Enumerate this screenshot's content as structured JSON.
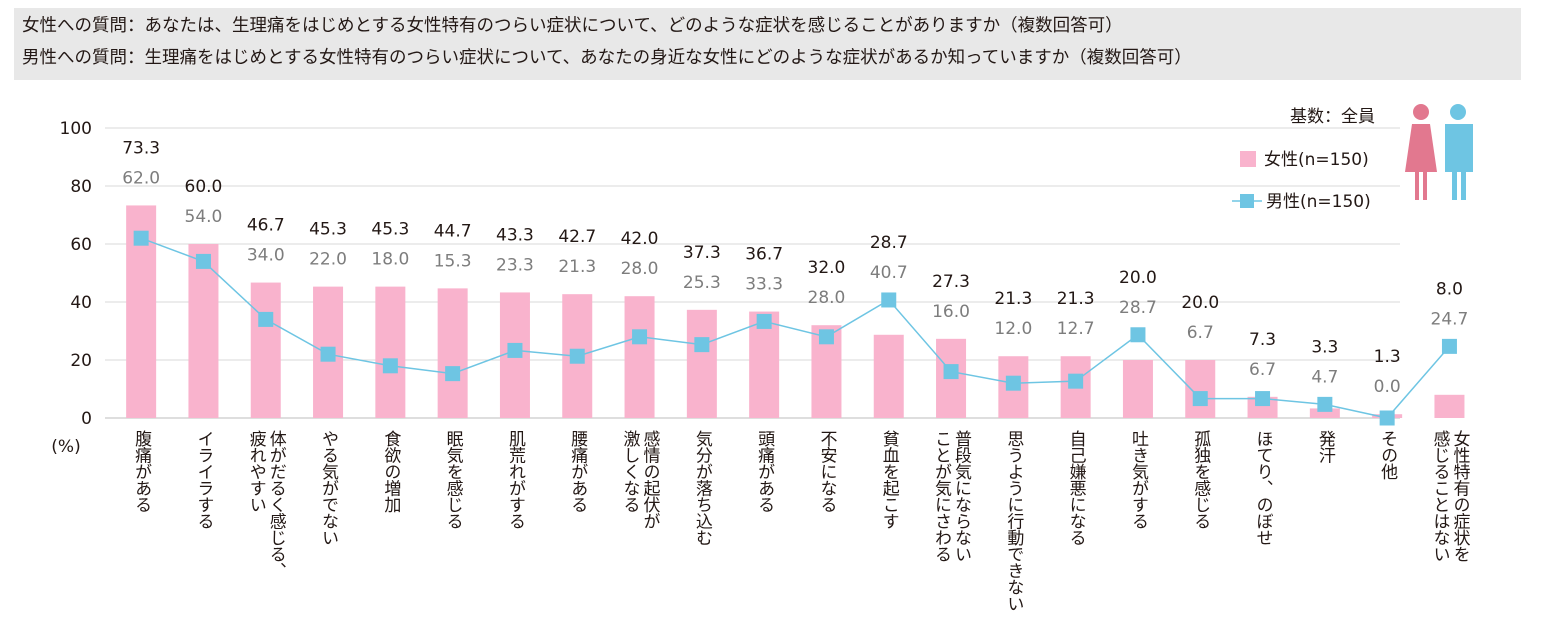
{
  "header": {
    "q_female": "女性への質問：あなたは、生理痛をはじめとする女性特有のつらい症状について、どのような症状を感じることがありますか（複数回答可）",
    "q_male": "男性への質問：生理痛をはじめとする女性特有のつらい症状について、あなたの身近な女性にどのような症状があるか知っていますか（複数回答可）"
  },
  "colors": {
    "female": "#f9b3cd",
    "male": "#6ec5e3",
    "female_icon": "#e2788f",
    "male_icon": "#6ec5e3"
  },
  "chart_data": {
    "type": "bar",
    "base_note": "基数：全員",
    "ylabel": "(%)",
    "ylim": [
      0,
      100
    ],
    "yticks": [
      0,
      20,
      40,
      60,
      80,
      100
    ],
    "categories": [
      [
        "腹痛がある"
      ],
      [
        "イライラする"
      ],
      [
        "体がだるく感じる、",
        "疲れやすい"
      ],
      [
        "やる気がでない"
      ],
      [
        "食欲の増加"
      ],
      [
        "眠気を感じる"
      ],
      [
        "肌荒れがする"
      ],
      [
        "腰痛がある"
      ],
      [
        "感情の起伏が",
        "激しくなる"
      ],
      [
        "気分が落ち込む"
      ],
      [
        "頭痛がある"
      ],
      [
        "不安になる"
      ],
      [
        "貧血を起こす"
      ],
      [
        "普段気にならない",
        "ことが気にさわる"
      ],
      [
        "思うように行動できない"
      ],
      [
        "自己嫌悪になる"
      ],
      [
        "吐き気がする"
      ],
      [
        "孤独を感じる"
      ],
      [
        "ほてり、のぼせ"
      ],
      [
        "発汗"
      ],
      [
        "その他"
      ],
      [
        "女性特有の症状を",
        "感じることはない"
      ]
    ],
    "series": [
      {
        "name": "女性(n=150)",
        "type": "bar",
        "values": [
          73.3,
          60.0,
          46.7,
          45.3,
          45.3,
          44.7,
          43.3,
          42.7,
          42.0,
          37.3,
          36.7,
          32.0,
          28.7,
          27.3,
          21.3,
          21.3,
          20.0,
          20.0,
          7.3,
          3.3,
          1.3,
          8.0
        ]
      },
      {
        "name": "男性(n=150)",
        "type": "line",
        "values": [
          62.0,
          54.0,
          34.0,
          22.0,
          18.0,
          15.3,
          23.3,
          21.3,
          28.0,
          25.3,
          33.3,
          28.0,
          40.7,
          16.0,
          12.0,
          12.7,
          28.7,
          6.7,
          6.7,
          4.7,
          0.0,
          24.7
        ]
      }
    ]
  }
}
